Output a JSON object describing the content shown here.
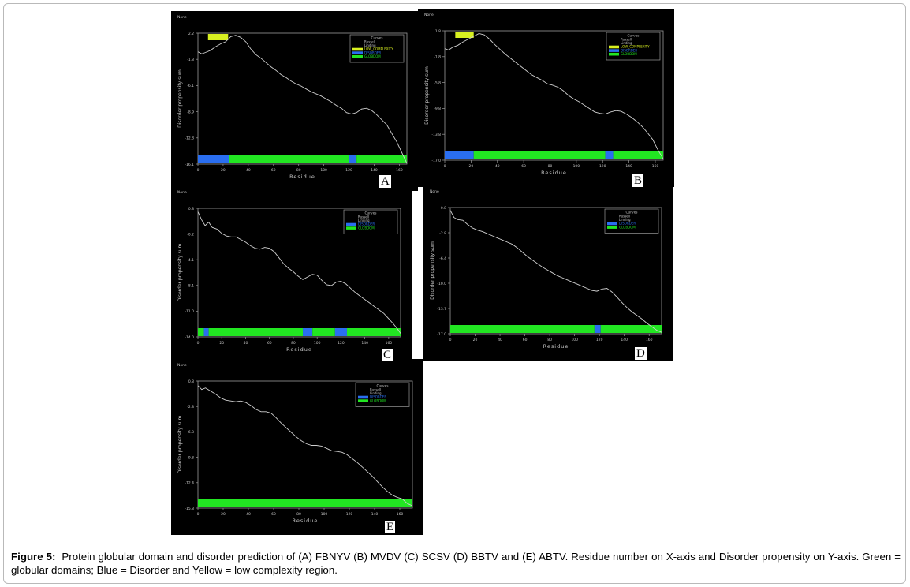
{
  "caption": {
    "label": "Figure 5:",
    "text": "Protein globular domain and disorder prediction of (A) FBNYV (B) MVDV (C) SCSV (D) BBTV and (E) ABTV. Residue number on X-axis and Disorder propensity on Y-axis. Green = globular domains; Blue = Disorder and Yellow = low complexity region."
  },
  "colors": {
    "background": "#000000",
    "curve": "#cfcfcf",
    "globular": "#22e622",
    "disorder": "#2a6ef0",
    "low_complexity": "#d8f020",
    "axis": "#9a9a9a",
    "text": "#c8c8c8"
  },
  "chart_data": [
    {
      "panel": "A",
      "type": "line",
      "header": "None",
      "xlabel": "Residue",
      "ylabel": "Disorder propensity sum",
      "xlim": [
        0,
        166
      ],
      "xticks": [
        "0",
        "20",
        "40",
        "60",
        "80",
        "100",
        "120",
        "140",
        "160"
      ],
      "ylim": [
        -16.1,
        2.2
      ],
      "yticks": [
        "2.2",
        "-1.8",
        "-6.1",
        "-8.9",
        "-12.8",
        "-16.1"
      ],
      "legend": {
        "title": "Curves",
        "position": "top-right",
        "entries": [
          {
            "label": "Russell",
            "kind": "text"
          },
          {
            "label": "Linding",
            "kind": "text"
          },
          {
            "label": "LOW_COMPLEXITY",
            "kind": "low_complexity"
          },
          {
            "label": "DISORDER",
            "kind": "disorder"
          },
          {
            "label": "GLOBDOM",
            "kind": "globular"
          }
        ]
      },
      "curve": [
        [
          0,
          -0.4
        ],
        [
          3,
          -0.7
        ],
        [
          6,
          -0.5
        ],
        [
          10,
          -0.2
        ],
        [
          14,
          0.3
        ],
        [
          18,
          0.7
        ],
        [
          22,
          1.0
        ],
        [
          26,
          1.7
        ],
        [
          30,
          1.9
        ],
        [
          34,
          1.6
        ],
        [
          38,
          1.0
        ],
        [
          42,
          0.0
        ],
        [
          46,
          -0.8
        ],
        [
          50,
          -1.3
        ],
        [
          54,
          -1.9
        ],
        [
          58,
          -2.5
        ],
        [
          62,
          -3.0
        ],
        [
          66,
          -3.6
        ],
        [
          70,
          -4.0
        ],
        [
          74,
          -4.5
        ],
        [
          78,
          -4.9
        ],
        [
          82,
          -5.2
        ],
        [
          86,
          -5.6
        ],
        [
          90,
          -6.0
        ],
        [
          94,
          -6.3
        ],
        [
          98,
          -6.6
        ],
        [
          102,
          -7.0
        ],
        [
          106,
          -7.4
        ],
        [
          110,
          -7.9
        ],
        [
          114,
          -8.3
        ],
        [
          118,
          -8.9
        ],
        [
          122,
          -9.1
        ],
        [
          126,
          -8.9
        ],
        [
          130,
          -8.4
        ],
        [
          134,
          -8.3
        ],
        [
          138,
          -8.6
        ],
        [
          142,
          -9.2
        ],
        [
          146,
          -9.9
        ],
        [
          150,
          -10.6
        ],
        [
          154,
          -11.8
        ],
        [
          158,
          -13.0
        ],
        [
          162,
          -14.5
        ],
        [
          166,
          -16.0
        ]
      ],
      "bands": {
        "low_complexity": [
          [
            8,
            24
          ]
        ],
        "domains": [
          {
            "kind": "disorder",
            "from": 0,
            "to": 25
          },
          {
            "kind": "globular",
            "from": 25,
            "to": 120
          },
          {
            "kind": "disorder",
            "from": 120,
            "to": 126
          },
          {
            "kind": "globular",
            "from": 126,
            "to": 166
          }
        ]
      }
    },
    {
      "panel": "B",
      "type": "line",
      "header": "None",
      "xlabel": "Residue",
      "ylabel": "Disorder propensity sum",
      "xlim": [
        0,
        166
      ],
      "xticks": [
        "0",
        "20",
        "40",
        "60",
        "80",
        "100",
        "120",
        "140",
        "160"
      ],
      "ylim": [
        -17.0,
        1.8
      ],
      "yticks": [
        "1.8",
        "-1.8",
        "-5.8",
        "-9.8",
        "-13.8",
        "-17.0"
      ],
      "legend": {
        "title": "Curves",
        "position": "top-right",
        "entries": [
          {
            "label": "Russell",
            "kind": "text"
          },
          {
            "label": "Linding",
            "kind": "text"
          },
          {
            "label": "LOW_COMPLEXITY",
            "kind": "low_complexity"
          },
          {
            "label": "DISORDER",
            "kind": "disorder"
          },
          {
            "label": "GLOBDOM",
            "kind": "globular"
          }
        ]
      },
      "curve": [
        [
          0,
          -0.8
        ],
        [
          3,
          -1.0
        ],
        [
          6,
          -0.6
        ],
        [
          10,
          -0.3
        ],
        [
          14,
          0.2
        ],
        [
          18,
          0.6
        ],
        [
          22,
          1.0
        ],
        [
          26,
          1.4
        ],
        [
          30,
          1.2
        ],
        [
          34,
          0.6
        ],
        [
          38,
          -0.2
        ],
        [
          42,
          -0.9
        ],
        [
          46,
          -1.6
        ],
        [
          50,
          -2.2
        ],
        [
          54,
          -2.8
        ],
        [
          58,
          -3.4
        ],
        [
          62,
          -4.0
        ],
        [
          66,
          -4.6
        ],
        [
          70,
          -5.0
        ],
        [
          74,
          -5.4
        ],
        [
          78,
          -5.9
        ],
        [
          82,
          -6.1
        ],
        [
          86,
          -6.4
        ],
        [
          90,
          -6.9
        ],
        [
          94,
          -7.6
        ],
        [
          98,
          -8.1
        ],
        [
          102,
          -8.5
        ],
        [
          106,
          -9.0
        ],
        [
          110,
          -9.5
        ],
        [
          114,
          -10.0
        ],
        [
          118,
          -10.2
        ],
        [
          122,
          -10.3
        ],
        [
          126,
          -10.0
        ],
        [
          130,
          -9.8
        ],
        [
          134,
          -9.9
        ],
        [
          138,
          -10.3
        ],
        [
          142,
          -10.8
        ],
        [
          146,
          -11.4
        ],
        [
          150,
          -12.1
        ],
        [
          154,
          -13.0
        ],
        [
          158,
          -14.0
        ],
        [
          162,
          -15.5
        ],
        [
          166,
          -16.8
        ]
      ],
      "bands": {
        "low_complexity": [
          [
            8,
            22
          ]
        ],
        "domains": [
          {
            "kind": "disorder",
            "from": 0,
            "to": 22
          },
          {
            "kind": "globular",
            "from": 22,
            "to": 122
          },
          {
            "kind": "disorder",
            "from": 122,
            "to": 128
          },
          {
            "kind": "globular",
            "from": 128,
            "to": 166
          }
        ]
      }
    },
    {
      "panel": "C",
      "type": "line",
      "header": "None",
      "xlabel": "Residue",
      "ylabel": "Disorder propensity sum",
      "xlim": [
        0,
        170
      ],
      "xticks": [
        "0",
        "20",
        "40",
        "60",
        "80",
        "100",
        "120",
        "140",
        "160"
      ],
      "ylim": [
        -14.0,
        0.8
      ],
      "yticks": [
        "0.8",
        "-0.2",
        "-4.1",
        "-8.1",
        "-11.0",
        "-14.0"
      ],
      "legend": {
        "title": "Curves",
        "position": "top-right",
        "entries": [
          {
            "label": "Russell",
            "kind": "text"
          },
          {
            "label": "Linding",
            "kind": "text"
          },
          {
            "label": "DISORDER",
            "kind": "disorder"
          },
          {
            "label": "GLOBDOM",
            "kind": "globular"
          }
        ]
      },
      "curve": [
        [
          0,
          0.4
        ],
        [
          3,
          -0.5
        ],
        [
          6,
          -1.2
        ],
        [
          9,
          -0.8
        ],
        [
          12,
          -1.4
        ],
        [
          16,
          -1.6
        ],
        [
          20,
          -2.1
        ],
        [
          24,
          -2.4
        ],
        [
          28,
          -2.5
        ],
        [
          32,
          -2.5
        ],
        [
          36,
          -2.8
        ],
        [
          40,
          -3.1
        ],
        [
          44,
          -3.5
        ],
        [
          48,
          -3.8
        ],
        [
          52,
          -3.9
        ],
        [
          56,
          -3.7
        ],
        [
          60,
          -3.8
        ],
        [
          64,
          -4.2
        ],
        [
          68,
          -4.9
        ],
        [
          72,
          -5.6
        ],
        [
          76,
          -6.1
        ],
        [
          80,
          -6.5
        ],
        [
          84,
          -7.0
        ],
        [
          88,
          -7.4
        ],
        [
          92,
          -7.1
        ],
        [
          96,
          -6.8
        ],
        [
          100,
          -6.9
        ],
        [
          104,
          -7.5
        ],
        [
          108,
          -8.0
        ],
        [
          112,
          -8.1
        ],
        [
          116,
          -7.7
        ],
        [
          120,
          -7.6
        ],
        [
          124,
          -7.9
        ],
        [
          128,
          -8.4
        ],
        [
          132,
          -8.9
        ],
        [
          136,
          -9.3
        ],
        [
          140,
          -9.7
        ],
        [
          144,
          -10.1
        ],
        [
          148,
          -10.5
        ],
        [
          152,
          -10.9
        ],
        [
          156,
          -11.3
        ],
        [
          160,
          -11.9
        ],
        [
          164,
          -12.5
        ],
        [
          168,
          -13.2
        ],
        [
          170,
          -13.6
        ]
      ],
      "bands": {
        "domains": [
          {
            "kind": "globular",
            "from": 0,
            "to": 5
          },
          {
            "kind": "disorder",
            "from": 5,
            "to": 9
          },
          {
            "kind": "globular",
            "from": 9,
            "to": 88
          },
          {
            "kind": "disorder",
            "from": 88,
            "to": 96
          },
          {
            "kind": "globular",
            "from": 96,
            "to": 115
          },
          {
            "kind": "disorder",
            "from": 115,
            "to": 125
          },
          {
            "kind": "globular",
            "from": 125,
            "to": 170
          }
        ]
      }
    },
    {
      "panel": "D",
      "type": "line",
      "header": "None",
      "xlabel": "Residue",
      "ylabel": "Disorder propensity sum",
      "xlim": [
        0,
        170
      ],
      "xticks": [
        "0",
        "20",
        "40",
        "60",
        "80",
        "100",
        "120",
        "140",
        "160"
      ],
      "ylim": [
        -17.0,
        0.8
      ],
      "yticks": [
        "0.8",
        "-2.8",
        "-6.4",
        "-10.0",
        "-13.7",
        "-17.0"
      ],
      "legend": {
        "title": "Curves",
        "position": "top-right",
        "entries": [
          {
            "label": "Russell",
            "kind": "text"
          },
          {
            "label": "Linding",
            "kind": "text"
          },
          {
            "label": "DISORDER",
            "kind": "disorder"
          },
          {
            "label": "GLOBDOM",
            "kind": "globular"
          }
        ]
      },
      "curve": [
        [
          0,
          0.4
        ],
        [
          3,
          -0.6
        ],
        [
          6,
          -0.9
        ],
        [
          10,
          -1.0
        ],
        [
          14,
          -1.6
        ],
        [
          18,
          -2.1
        ],
        [
          22,
          -2.4
        ],
        [
          26,
          -2.6
        ],
        [
          30,
          -2.9
        ],
        [
          34,
          -3.2
        ],
        [
          38,
          -3.5
        ],
        [
          42,
          -3.8
        ],
        [
          46,
          -4.1
        ],
        [
          50,
          -4.4
        ],
        [
          54,
          -4.9
        ],
        [
          58,
          -5.5
        ],
        [
          62,
          -6.1
        ],
        [
          66,
          -6.6
        ],
        [
          70,
          -7.1
        ],
        [
          74,
          -7.6
        ],
        [
          78,
          -8.0
        ],
        [
          82,
          -8.4
        ],
        [
          86,
          -8.8
        ],
        [
          90,
          -9.1
        ],
        [
          94,
          -9.4
        ],
        [
          98,
          -9.7
        ],
        [
          102,
          -10.0
        ],
        [
          106,
          -10.3
        ],
        [
          110,
          -10.6
        ],
        [
          114,
          -10.9
        ],
        [
          118,
          -11.0
        ],
        [
          122,
          -10.7
        ],
        [
          126,
          -10.6
        ],
        [
          130,
          -11.1
        ],
        [
          134,
          -11.8
        ],
        [
          138,
          -12.6
        ],
        [
          142,
          -13.3
        ],
        [
          146,
          -13.9
        ],
        [
          150,
          -14.4
        ],
        [
          154,
          -14.9
        ],
        [
          158,
          -15.5
        ],
        [
          162,
          -16.0
        ],
        [
          166,
          -16.5
        ],
        [
          170,
          -16.8
        ]
      ],
      "bands": {
        "domains": [
          {
            "kind": "globular",
            "from": 0,
            "to": 116
          },
          {
            "kind": "disorder",
            "from": 116,
            "to": 121
          },
          {
            "kind": "globular",
            "from": 121,
            "to": 170
          }
        ]
      }
    },
    {
      "panel": "E",
      "type": "line",
      "header": "None",
      "xlabel": "Residue",
      "ylabel": "Disorder propensity sum",
      "xlim": [
        0,
        170
      ],
      "xticks": [
        "0",
        "20",
        "40",
        "60",
        "80",
        "100",
        "120",
        "140",
        "160"
      ],
      "ylim": [
        -15.8,
        0.8
      ],
      "yticks": [
        "0.8",
        "-2.8",
        "-6.3",
        "-9.8",
        "-12.4",
        "-15.8"
      ],
      "legend": {
        "title": "Curves",
        "position": "top-right",
        "entries": [
          {
            "label": "Russell",
            "kind": "text"
          },
          {
            "label": "Linding",
            "kind": "text"
          },
          {
            "label": "DISORDER",
            "kind": "disorder"
          },
          {
            "label": "GLOBDOM",
            "kind": "globular"
          }
        ]
      },
      "curve": [
        [
          0,
          0.2
        ],
        [
          3,
          -0.3
        ],
        [
          6,
          -0.1
        ],
        [
          10,
          -0.5
        ],
        [
          14,
          -0.9
        ],
        [
          18,
          -1.4
        ],
        [
          22,
          -1.7
        ],
        [
          26,
          -1.8
        ],
        [
          30,
          -1.9
        ],
        [
          34,
          -1.8
        ],
        [
          38,
          -2.0
        ],
        [
          42,
          -2.4
        ],
        [
          46,
          -2.9
        ],
        [
          50,
          -3.2
        ],
        [
          54,
          -3.2
        ],
        [
          58,
          -3.4
        ],
        [
          62,
          -4.0
        ],
        [
          66,
          -4.7
        ],
        [
          70,
          -5.3
        ],
        [
          74,
          -5.9
        ],
        [
          78,
          -6.5
        ],
        [
          82,
          -7.0
        ],
        [
          86,
          -7.4
        ],
        [
          90,
          -7.6
        ],
        [
          94,
          -7.6
        ],
        [
          98,
          -7.7
        ],
        [
          102,
          -8.0
        ],
        [
          106,
          -8.3
        ],
        [
          110,
          -8.4
        ],
        [
          114,
          -8.5
        ],
        [
          118,
          -8.8
        ],
        [
          122,
          -9.3
        ],
        [
          126,
          -9.8
        ],
        [
          130,
          -10.4
        ],
        [
          134,
          -11.0
        ],
        [
          138,
          -11.6
        ],
        [
          142,
          -12.3
        ],
        [
          146,
          -13.0
        ],
        [
          150,
          -13.6
        ],
        [
          154,
          -14.1
        ],
        [
          158,
          -14.4
        ],
        [
          162,
          -14.6
        ],
        [
          166,
          -15.2
        ],
        [
          170,
          -15.5
        ]
      ],
      "bands": {
        "domains": [
          {
            "kind": "globular",
            "from": 0,
            "to": 170
          }
        ]
      }
    }
  ]
}
